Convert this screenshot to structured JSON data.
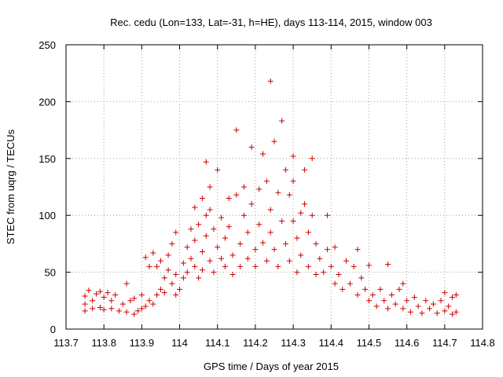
{
  "chart_data": {
    "type": "scatter",
    "title": "Rec. cedu (Lon=133, Lat=-31, h=HE), days 113-114, 2015, window 003",
    "xlabel": "GPS time / Days of year 2015",
    "ylabel": "STEC from uqrg / TECUs",
    "xlim": [
      113.7,
      114.8
    ],
    "ylim": [
      0,
      250
    ],
    "xticks": [
      "113.7",
      "113.8",
      "113.9",
      "114",
      "114.1",
      "114.2",
      "114.3",
      "114.4",
      "114.5",
      "114.6",
      "114.7",
      "114.8"
    ],
    "yticks": [
      "0",
      "50",
      "100",
      "150",
      "200",
      "250"
    ],
    "grid": true,
    "marker": "plus",
    "color": "#cc0000",
    "series": [
      {
        "points": [
          [
            113.75,
            16
          ],
          [
            113.75,
            22
          ],
          [
            113.75,
            29
          ],
          [
            113.76,
            34
          ],
          [
            113.77,
            18
          ],
          [
            113.77,
            25
          ],
          [
            113.78,
            31
          ],
          [
            113.79,
            19
          ],
          [
            113.79,
            33
          ],
          [
            113.8,
            17
          ],
          [
            113.8,
            28
          ],
          [
            113.81,
            32
          ],
          [
            113.82,
            18
          ],
          [
            113.82,
            25
          ],
          [
            113.83,
            30
          ],
          [
            113.84,
            16
          ],
          [
            113.85,
            22
          ],
          [
            113.86,
            40
          ],
          [
            113.86,
            15
          ],
          [
            113.87,
            25
          ],
          [
            113.88,
            13
          ],
          [
            113.88,
            27
          ],
          [
            113.89,
            16
          ],
          [
            113.9,
            18
          ],
          [
            113.9,
            30
          ],
          [
            113.91,
            20
          ],
          [
            113.91,
            63
          ],
          [
            113.92,
            25
          ],
          [
            113.92,
            55
          ],
          [
            113.93,
            22
          ],
          [
            113.93,
            67
          ],
          [
            113.94,
            30
          ],
          [
            113.94,
            55
          ],
          [
            113.95,
            35
          ],
          [
            113.95,
            60
          ],
          [
            113.96,
            45
          ],
          [
            113.96,
            32
          ],
          [
            113.97,
            52
          ],
          [
            113.97,
            65
          ],
          [
            113.98,
            40
          ],
          [
            113.98,
            75
          ],
          [
            113.99,
            48
          ],
          [
            113.99,
            85
          ],
          [
            113.99,
            30
          ],
          [
            114.0,
            35
          ],
          [
            114.01,
            45
          ],
          [
            114.01,
            58
          ],
          [
            114.02,
            72
          ],
          [
            114.02,
            50
          ],
          [
            114.03,
            88
          ],
          [
            114.03,
            62
          ],
          [
            114.04,
            107
          ],
          [
            114.04,
            55
          ],
          [
            114.04,
            78
          ],
          [
            114.05,
            45
          ],
          [
            114.05,
            92
          ],
          [
            114.06,
            68
          ],
          [
            114.06,
            115
          ],
          [
            114.06,
            52
          ],
          [
            114.07,
            147
          ],
          [
            114.07,
            100
          ],
          [
            114.07,
            82
          ],
          [
            114.08,
            125
          ],
          [
            114.08,
            60
          ],
          [
            114.08,
            105
          ],
          [
            114.09,
            88
          ],
          [
            114.09,
            50
          ],
          [
            114.1,
            140
          ],
          [
            114.1,
            72
          ],
          [
            114.11,
            62
          ],
          [
            114.11,
            98
          ],
          [
            114.12,
            80
          ],
          [
            114.12,
            55
          ],
          [
            114.13,
            90
          ],
          [
            114.13,
            115
          ],
          [
            114.14,
            65
          ],
          [
            114.14,
            48
          ],
          [
            114.15,
            175
          ],
          [
            114.15,
            118
          ],
          [
            114.16,
            75
          ],
          [
            114.16,
            55
          ],
          [
            114.17,
            100
          ],
          [
            114.17,
            125
          ],
          [
            114.18,
            85
          ],
          [
            114.18,
            62
          ],
          [
            114.19,
            160
          ],
          [
            114.19,
            110
          ],
          [
            114.2,
            70
          ],
          [
            114.2,
            55
          ],
          [
            114.21,
            123
          ],
          [
            114.21,
            92
          ],
          [
            114.22,
            154
          ],
          [
            114.22,
            76
          ],
          [
            114.23,
            60
          ],
          [
            114.23,
            130
          ],
          [
            114.24,
            218
          ],
          [
            114.24,
            105
          ],
          [
            114.24,
            85
          ],
          [
            114.25,
            165
          ],
          [
            114.25,
            70
          ],
          [
            114.26,
            120
          ],
          [
            114.26,
            55
          ],
          [
            114.27,
            183
          ],
          [
            114.27,
            95
          ],
          [
            114.28,
            140
          ],
          [
            114.28,
            75
          ],
          [
            114.29,
            60
          ],
          [
            114.29,
            118
          ],
          [
            114.3,
            152
          ],
          [
            114.3,
            95
          ],
          [
            114.3,
            130
          ],
          [
            114.31,
            80
          ],
          [
            114.31,
            50
          ],
          [
            114.32,
            102
          ],
          [
            114.32,
            65
          ],
          [
            114.33,
            140
          ],
          [
            114.33,
            110
          ],
          [
            114.34,
            85
          ],
          [
            114.34,
            55
          ],
          [
            114.35,
            150
          ],
          [
            114.35,
            100
          ],
          [
            114.36,
            75
          ],
          [
            114.36,
            48
          ],
          [
            114.37,
            62
          ],
          [
            114.38,
            50
          ],
          [
            114.39,
            70
          ],
          [
            114.39,
            100
          ],
          [
            114.4,
            55
          ],
          [
            114.41,
            40
          ],
          [
            114.41,
            72
          ],
          [
            114.42,
            48
          ],
          [
            114.43,
            35
          ],
          [
            114.44,
            60
          ],
          [
            114.45,
            40
          ],
          [
            114.46,
            55
          ],
          [
            114.47,
            30
          ],
          [
            114.47,
            70
          ],
          [
            114.48,
            45
          ],
          [
            114.49,
            35
          ],
          [
            114.5,
            25
          ],
          [
            114.5,
            56
          ],
          [
            114.51,
            30
          ],
          [
            114.52,
            20
          ],
          [
            114.53,
            35
          ],
          [
            114.54,
            25
          ],
          [
            114.55,
            57
          ],
          [
            114.55,
            18
          ],
          [
            114.56,
            30
          ],
          [
            114.57,
            22
          ],
          [
            114.58,
            35
          ],
          [
            114.59,
            40
          ],
          [
            114.59,
            18
          ],
          [
            114.6,
            25
          ],
          [
            114.61,
            15
          ],
          [
            114.62,
            28
          ],
          [
            114.63,
            20
          ],
          [
            114.64,
            14
          ],
          [
            114.65,
            25
          ],
          [
            114.66,
            18
          ],
          [
            114.67,
            22
          ],
          [
            114.68,
            14
          ],
          [
            114.69,
            25
          ],
          [
            114.7,
            32
          ],
          [
            114.7,
            16
          ],
          [
            114.71,
            20
          ],
          [
            114.72,
            28
          ],
          [
            114.72,
            13
          ],
          [
            114.73,
            15
          ],
          [
            114.73,
            30
          ]
        ]
      }
    ]
  }
}
